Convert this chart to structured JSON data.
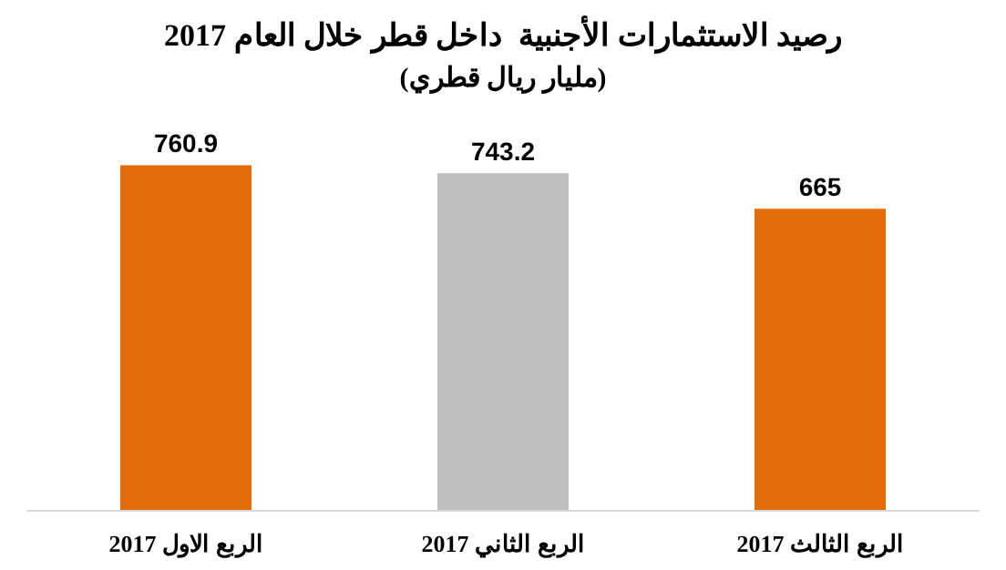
{
  "chart_data": {
    "type": "bar",
    "title": "رصيد الاستثمارات الأجنبية  داخل قطر خلال العام 2017",
    "subtitle": "(مليار ريال قطري)",
    "categories": [
      "الربع الاول 2017",
      "الربع الثاني 2017",
      "الربع الثالث 2017"
    ],
    "values": [
      760.9,
      743.2,
      665
    ],
    "colors": [
      "#e46c0a",
      "#bfbfbf",
      "#e46c0a"
    ],
    "tick_labels": "x",
    "data_labels": true
  }
}
